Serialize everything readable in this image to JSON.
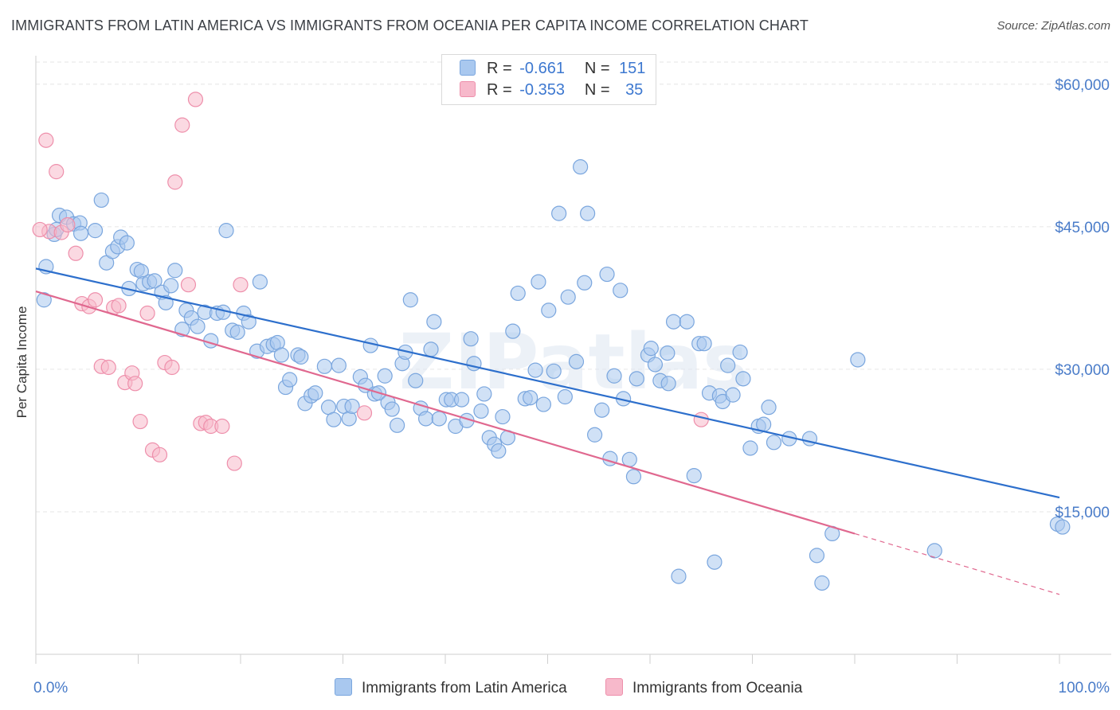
{
  "header": {
    "title": "IMMIGRANTS FROM LATIN AMERICA VS IMMIGRANTS FROM OCEANIA PER CAPITA INCOME CORRELATION CHART",
    "source": "Source: ZipAtlas.com"
  },
  "watermark": "ZIPatlas",
  "legend": {
    "r_label": "R =",
    "n_label": "N =",
    "rows": [
      {
        "r": "-0.661",
        "n": "151"
      },
      {
        "r": "-0.353",
        "n": "35"
      }
    ]
  },
  "colors": {
    "blue_fill": "#a9c8ef",
    "blue_stroke": "#7aa6de",
    "blue_line": "#2d6fcc",
    "pink_fill": "#f7b9cb",
    "pink_stroke": "#ee8fab",
    "pink_line": "#e0688f",
    "grid": "#e6e6e6",
    "tick_text": "#4a7cc9"
  },
  "chart_data": {
    "type": "scatter",
    "title": "IMMIGRANTS FROM LATIN AMERICA VS IMMIGRANTS FROM OCEANIA PER CAPITA INCOME CORRELATION CHART",
    "xlabel": "",
    "ylabel": "Per Capita Income",
    "xlim": [
      0,
      100
    ],
    "ylim": [
      0,
      63000
    ],
    "x_tick_labels": [
      "0.0%",
      "100.0%"
    ],
    "y_ticks": [
      15000,
      30000,
      45000,
      60000
    ],
    "y_tick_labels": [
      "$15,000",
      "$30,000",
      "$45,000",
      "$60,000"
    ],
    "grid": true,
    "legend_position": "bottom",
    "series": [
      {
        "name": "Immigrants from Latin America",
        "r": -0.661,
        "n": 151,
        "trend": {
          "x": [
            0,
            100
          ],
          "y": [
            40600,
            16500
          ]
        },
        "points": [
          [
            0.8,
            37300
          ],
          [
            1,
            40800
          ],
          [
            1.8,
            44200
          ],
          [
            2,
            44700
          ],
          [
            2.3,
            46200
          ],
          [
            3,
            46000
          ],
          [
            3.7,
            45300
          ],
          [
            4.3,
            45400
          ],
          [
            4.4,
            44300
          ],
          [
            5.8,
            44600
          ],
          [
            6.4,
            47800
          ],
          [
            6.9,
            41200
          ],
          [
            7.5,
            42400
          ],
          [
            8,
            42900
          ],
          [
            8.3,
            43900
          ],
          [
            8.9,
            43300
          ],
          [
            9.1,
            38500
          ],
          [
            9.9,
            40500
          ],
          [
            10.3,
            40300
          ],
          [
            10.5,
            39000
          ],
          [
            11.1,
            39200
          ],
          [
            11.6,
            39300
          ],
          [
            12.3,
            38100
          ],
          [
            12.7,
            37000
          ],
          [
            13.2,
            38800
          ],
          [
            13.6,
            40400
          ],
          [
            14.3,
            34200
          ],
          [
            14.7,
            36200
          ],
          [
            15.2,
            35400
          ],
          [
            15.8,
            34500
          ],
          [
            16.5,
            36000
          ],
          [
            17.1,
            33000
          ],
          [
            17.7,
            35900
          ],
          [
            18.3,
            36000
          ],
          [
            18.6,
            44600
          ],
          [
            19.2,
            34100
          ],
          [
            19.7,
            33900
          ],
          [
            20.3,
            35900
          ],
          [
            20.8,
            35000
          ],
          [
            21.6,
            31900
          ],
          [
            21.9,
            39200
          ],
          [
            22.6,
            32400
          ],
          [
            23.2,
            32600
          ],
          [
            23.6,
            32800
          ],
          [
            24,
            31500
          ],
          [
            24.4,
            28100
          ],
          [
            24.8,
            28900
          ],
          [
            25.6,
            31500
          ],
          [
            25.9,
            31300
          ],
          [
            26.3,
            26400
          ],
          [
            26.9,
            27200
          ],
          [
            27.3,
            27500
          ],
          [
            28.2,
            30300
          ],
          [
            28.6,
            26000
          ],
          [
            29.1,
            24700
          ],
          [
            29.6,
            30400
          ],
          [
            30.1,
            26100
          ],
          [
            30.6,
            24800
          ],
          [
            30.9,
            26100
          ],
          [
            31.7,
            29200
          ],
          [
            32.2,
            28300
          ],
          [
            32.7,
            32500
          ],
          [
            33.1,
            27400
          ],
          [
            33.5,
            27500
          ],
          [
            34.1,
            29300
          ],
          [
            34.4,
            26500
          ],
          [
            34.8,
            25800
          ],
          [
            35.3,
            24100
          ],
          [
            35.8,
            30600
          ],
          [
            36.1,
            31800
          ],
          [
            36.6,
            37300
          ],
          [
            37.1,
            28800
          ],
          [
            37.6,
            25900
          ],
          [
            38.1,
            24800
          ],
          [
            38.6,
            32100
          ],
          [
            38.9,
            35000
          ],
          [
            39.4,
            24800
          ],
          [
            40.1,
            26800
          ],
          [
            40.6,
            26800
          ],
          [
            41,
            24000
          ],
          [
            41.6,
            26800
          ],
          [
            42.1,
            24600
          ],
          [
            42.5,
            33200
          ],
          [
            42.8,
            30600
          ],
          [
            43.5,
            25600
          ],
          [
            43.8,
            27400
          ],
          [
            44.3,
            22800
          ],
          [
            44.8,
            22100
          ],
          [
            45.2,
            21400
          ],
          [
            45.6,
            25000
          ],
          [
            46.1,
            22800
          ],
          [
            46.6,
            34000
          ],
          [
            47.1,
            38000
          ],
          [
            47.8,
            26900
          ],
          [
            48.3,
            27000
          ],
          [
            48.8,
            29900
          ],
          [
            49.1,
            39200
          ],
          [
            49.6,
            26300
          ],
          [
            50.1,
            36200
          ],
          [
            50.6,
            29800
          ],
          [
            51.1,
            46400
          ],
          [
            51.7,
            27100
          ],
          [
            52,
            37600
          ],
          [
            52.8,
            30800
          ],
          [
            53.2,
            51300
          ],
          [
            53.6,
            39100
          ],
          [
            53.9,
            46400
          ],
          [
            54.6,
            23100
          ],
          [
            55.3,
            25700
          ],
          [
            55.8,
            40000
          ],
          [
            56.1,
            20600
          ],
          [
            56.5,
            29300
          ],
          [
            57.1,
            38300
          ],
          [
            57.4,
            26900
          ],
          [
            58,
            20500
          ],
          [
            58.4,
            18700
          ],
          [
            58.7,
            29000
          ],
          [
            59.8,
            31500
          ],
          [
            60.1,
            32200
          ],
          [
            60.5,
            30500
          ],
          [
            61,
            28800
          ],
          [
            61.7,
            31700
          ],
          [
            62.3,
            35000
          ],
          [
            62.8,
            8200
          ],
          [
            63.6,
            35000
          ],
          [
            64.3,
            18800
          ],
          [
            64.8,
            32700
          ],
          [
            65.3,
            32700
          ],
          [
            65.8,
            27500
          ],
          [
            66.3,
            9700
          ],
          [
            66.8,
            27200
          ],
          [
            67.1,
            26600
          ],
          [
            67.6,
            30400
          ],
          [
            68.1,
            27300
          ],
          [
            68.8,
            31800
          ],
          [
            69.1,
            29000
          ],
          [
            69.8,
            21700
          ],
          [
            70.6,
            24000
          ],
          [
            71.1,
            24200
          ],
          [
            71.6,
            26000
          ],
          [
            72.1,
            22300
          ],
          [
            73.6,
            22700
          ],
          [
            75.6,
            22700
          ],
          [
            76.3,
            10400
          ],
          [
            76.8,
            7500
          ],
          [
            77.8,
            12700
          ],
          [
            80.3,
            31000
          ],
          [
            87.8,
            10900
          ],
          [
            99.8,
            13700
          ],
          [
            100.3,
            13400
          ],
          [
            61.8,
            28500
          ]
        ]
      },
      {
        "name": "Immigrants from Oceania",
        "r": -0.353,
        "n": 35,
        "trend": {
          "x": [
            0,
            80
          ],
          "y": [
            38200,
            12700
          ]
        },
        "trend_dashed": {
          "x": [
            80,
            100
          ],
          "y": [
            12700,
            6300
          ]
        },
        "points": [
          [
            1,
            54100
          ],
          [
            1.3,
            44500
          ],
          [
            2,
            50800
          ],
          [
            2.5,
            44400
          ],
          [
            3.1,
            45200
          ],
          [
            3.9,
            42200
          ],
          [
            4.5,
            36900
          ],
          [
            5.2,
            36600
          ],
          [
            5.8,
            37300
          ],
          [
            6.4,
            30300
          ],
          [
            7.1,
            30200
          ],
          [
            7.6,
            36500
          ],
          [
            8.1,
            36700
          ],
          [
            8.7,
            28600
          ],
          [
            9.4,
            29600
          ],
          [
            9.7,
            28500
          ],
          [
            10.2,
            24500
          ],
          [
            10.9,
            35900
          ],
          [
            11.4,
            21500
          ],
          [
            12.1,
            21000
          ],
          [
            12.6,
            30700
          ],
          [
            13.3,
            30200
          ],
          [
            13.6,
            49700
          ],
          [
            14.3,
            55700
          ],
          [
            14.9,
            38900
          ],
          [
            15.6,
            58400
          ],
          [
            16.1,
            24300
          ],
          [
            16.6,
            24400
          ],
          [
            17.1,
            24000
          ],
          [
            18.2,
            24000
          ],
          [
            19.4,
            20100
          ],
          [
            20,
            38900
          ],
          [
            32.1,
            25400
          ],
          [
            65,
            24700
          ],
          [
            0.4,
            44700
          ]
        ]
      }
    ]
  }
}
